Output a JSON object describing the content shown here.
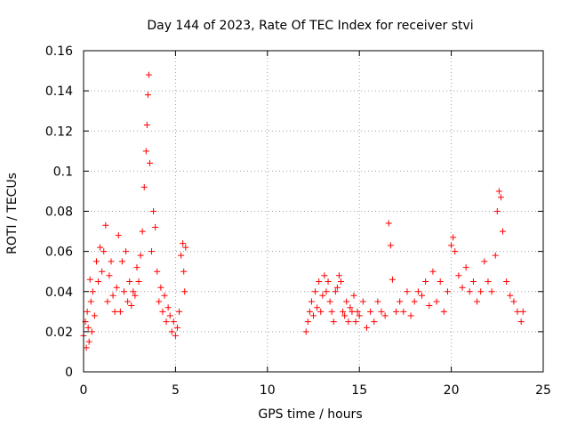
{
  "chart_data": {
    "type": "scatter",
    "title": "Day 144 of 2023, Rate Of TEC Index for receiver stvi",
    "xlabel": "GPS time / hours",
    "ylabel": "ROTI / TECUs",
    "xlim": [
      0,
      25
    ],
    "ylim": [
      0,
      0.16
    ],
    "xticks": [
      "0",
      "5",
      "10",
      "15",
      "20",
      "25"
    ],
    "yticks": [
      "0",
      "0.02",
      "0.04",
      "0.06",
      "0.08",
      "0.1",
      "0.12",
      "0.14",
      "0.16"
    ],
    "grid": true,
    "marker": "+",
    "color": "#ff0000",
    "series": [
      {
        "x": [
          0.0,
          0.1,
          0.15,
          0.2,
          0.25,
          0.3,
          0.35,
          0.4,
          0.45,
          0.5,
          0.6,
          0.7,
          0.8,
          0.9,
          1.0,
          1.1,
          1.2,
          1.3,
          1.4,
          1.5,
          1.6,
          1.7,
          1.8,
          1.9,
          2.0,
          2.1,
          2.2,
          2.3,
          2.4,
          2.5,
          2.6,
          2.7,
          2.8,
          2.9,
          3.0,
          3.1,
          3.2,
          3.3,
          3.4,
          3.45,
          3.5,
          3.55,
          3.6,
          3.7,
          3.8,
          3.9,
          4.0,
          4.1,
          4.2,
          4.3,
          4.4,
          4.5,
          4.6,
          4.7,
          4.8,
          4.9,
          5.0,
          5.1,
          5.2,
          5.3,
          5.4,
          5.45,
          5.5,
          5.55,
          12.1,
          12.2,
          12.3,
          12.4,
          12.5,
          12.6,
          12.7,
          12.8,
          12.9,
          13.0,
          13.1,
          13.2,
          13.3,
          13.4,
          13.5,
          13.6,
          13.7,
          13.8,
          13.9,
          14.0,
          14.1,
          14.2,
          14.3,
          14.4,
          14.5,
          14.6,
          14.7,
          14.8,
          14.9,
          15.0,
          15.2,
          15.4,
          15.6,
          15.8,
          16.0,
          16.2,
          16.4,
          16.6,
          16.7,
          16.8,
          17.0,
          17.2,
          17.4,
          17.6,
          17.8,
          18.0,
          18.2,
          18.4,
          18.6,
          18.8,
          19.0,
          19.2,
          19.4,
          19.6,
          19.8,
          20.0,
          20.1,
          20.2,
          20.4,
          20.6,
          20.8,
          21.0,
          21.2,
          21.4,
          21.6,
          21.8,
          22.0,
          22.2,
          22.4,
          22.5,
          22.6,
          22.7,
          22.8,
          23.0,
          23.2,
          23.4,
          23.6,
          23.8,
          23.9
        ],
        "y": [
          0.018,
          0.025,
          0.012,
          0.03,
          0.022,
          0.015,
          0.046,
          0.035,
          0.02,
          0.04,
          0.028,
          0.055,
          0.045,
          0.062,
          0.05,
          0.06,
          0.073,
          0.035,
          0.048,
          0.055,
          0.038,
          0.03,
          0.042,
          0.068,
          0.03,
          0.055,
          0.04,
          0.06,
          0.035,
          0.045,
          0.033,
          0.04,
          0.038,
          0.052,
          0.045,
          0.058,
          0.07,
          0.092,
          0.11,
          0.123,
          0.138,
          0.148,
          0.104,
          0.06,
          0.08,
          0.072,
          0.05,
          0.035,
          0.042,
          0.03,
          0.038,
          0.025,
          0.032,
          0.028,
          0.02,
          0.025,
          0.018,
          0.022,
          0.03,
          0.058,
          0.064,
          0.05,
          0.04,
          0.062,
          0.02,
          0.025,
          0.03,
          0.035,
          0.028,
          0.04,
          0.032,
          0.045,
          0.03,
          0.038,
          0.048,
          0.04,
          0.045,
          0.035,
          0.03,
          0.025,
          0.04,
          0.042,
          0.048,
          0.045,
          0.03,
          0.028,
          0.035,
          0.025,
          0.032,
          0.03,
          0.038,
          0.025,
          0.03,
          0.028,
          0.035,
          0.022,
          0.03,
          0.025,
          0.035,
          0.03,
          0.028,
          0.074,
          0.063,
          0.046,
          0.03,
          0.035,
          0.03,
          0.04,
          0.028,
          0.035,
          0.04,
          0.038,
          0.045,
          0.033,
          0.05,
          0.035,
          0.045,
          0.03,
          0.04,
          0.063,
          0.067,
          0.06,
          0.048,
          0.042,
          0.052,
          0.04,
          0.045,
          0.035,
          0.04,
          0.055,
          0.045,
          0.04,
          0.058,
          0.08,
          0.09,
          0.087,
          0.07,
          0.045,
          0.038,
          0.035,
          0.03,
          0.025,
          0.03
        ]
      }
    ]
  }
}
